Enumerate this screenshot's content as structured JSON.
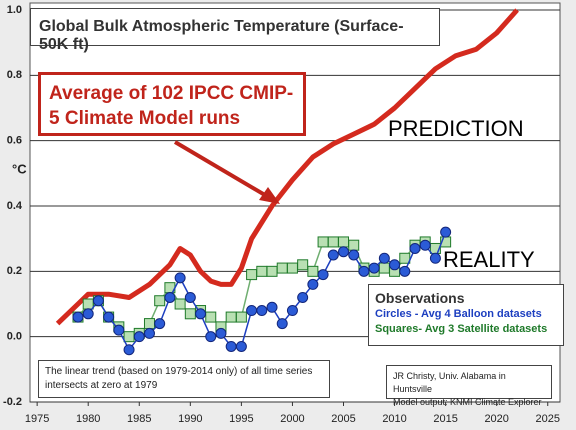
{
  "chart_data": {
    "type": "line",
    "title": "Global Bulk Atmospheric Temperature (Surface-50K ft)",
    "y_label": "°C",
    "annotations": {
      "prediction": "PREDICTION",
      "reality": "REALITY"
    },
    "legend_title": "Observations",
    "note": "The linear trend (based on 1979-2014 only) of all time series intersects at zero at 1979",
    "credit": [
      "JR Christy, Univ. Alabama in Huntsville",
      "Model output: KNMI Climate Explorer"
    ],
    "xlim": [
      1974.3,
      2026.2
    ],
    "ylim": [
      -0.2,
      1.0
    ],
    "xticks": [
      1975,
      1980,
      1985,
      1990,
      1995,
      2000,
      2005,
      2010,
      2015,
      2020,
      2025
    ],
    "yticks": [
      {
        "value": 1,
        "label": "1.0"
      },
      0.8,
      0.6,
      0.4,
      0.2,
      {
        "value": 0,
        "label": "0.0"
      },
      -0.2
    ],
    "grid": true,
    "series": [
      {
        "name": "Average of 102 IPCC CMIP-5 Climate Model runs",
        "color": "#d42a1e",
        "marker": "none",
        "x": [
          1977,
          1979,
          1980,
          1982,
          1984,
          1986,
          1988,
          1989,
          1990,
          1991,
          1992,
          1993,
          1994,
          1995,
          1996,
          1998,
          2000,
          2002,
          2004,
          2006,
          2008,
          2010,
          2012,
          2014,
          2016,
          2018,
          2020,
          2022
        ],
        "values": [
          0.04,
          0.1,
          0.13,
          0.13,
          0.12,
          0.16,
          0.22,
          0.27,
          0.25,
          0.2,
          0.17,
          0.16,
          0.16,
          0.21,
          0.3,
          0.4,
          0.48,
          0.55,
          0.59,
          0.62,
          0.65,
          0.7,
          0.76,
          0.82,
          0.86,
          0.88,
          0.93,
          1.0
        ]
      },
      {
        "name": "Squares- Avg 3 Satellite datasets",
        "color": "#1f7a2a",
        "marker": "square",
        "x": [
          1979,
          1980,
          1981,
          1982,
          1983,
          1984,
          1985,
          1986,
          1987,
          1988,
          1989,
          1990,
          1991,
          1992,
          1993,
          1994,
          1995,
          1996,
          1997,
          1998,
          1999,
          2000,
          2001,
          2002,
          2003,
          2004,
          2005,
          2006,
          2007,
          2008,
          2009,
          2010,
          2011,
          2012,
          2013,
          2014,
          2015
        ],
        "values": [
          0.06,
          0.1,
          0.11,
          0.06,
          0.03,
          0.0,
          0.01,
          0.04,
          0.11,
          0.15,
          0.1,
          0.07,
          0.08,
          0.06,
          0.03,
          0.06,
          0.06,
          0.19,
          0.2,
          0.2,
          0.21,
          0.21,
          0.22,
          0.2,
          0.29,
          0.29,
          0.29,
          0.28,
          0.21,
          0.2,
          0.21,
          0.2,
          0.24,
          0.28,
          0.29,
          0.27,
          0.29
        ]
      },
      {
        "name": "Circles - Avg 4 Balloon datasets",
        "color": "#1d3fc0",
        "marker": "circle",
        "x": [
          1979,
          1980,
          1981,
          1982,
          1983,
          1984,
          1985,
          1986,
          1987,
          1988,
          1989,
          1990,
          1991,
          1992,
          1993,
          1994,
          1995,
          1996,
          1997,
          1998,
          1999,
          2000,
          2001,
          2002,
          2003,
          2004,
          2005,
          2006,
          2007,
          2008,
          2009,
          2010,
          2011,
          2012,
          2013,
          2014,
          2015
        ],
        "values": [
          0.06,
          0.07,
          0.11,
          0.06,
          0.02,
          -0.04,
          0.0,
          0.01,
          0.04,
          0.12,
          0.18,
          0.12,
          0.07,
          0.0,
          0.01,
          -0.03,
          -0.03,
          0.08,
          0.08,
          0.09,
          0.04,
          0.08,
          0.12,
          0.16,
          0.19,
          0.25,
          0.26,
          0.25,
          0.2,
          0.21,
          0.24,
          0.22,
          0.2,
          0.27,
          0.28,
          0.24,
          0.32
        ]
      }
    ]
  }
}
